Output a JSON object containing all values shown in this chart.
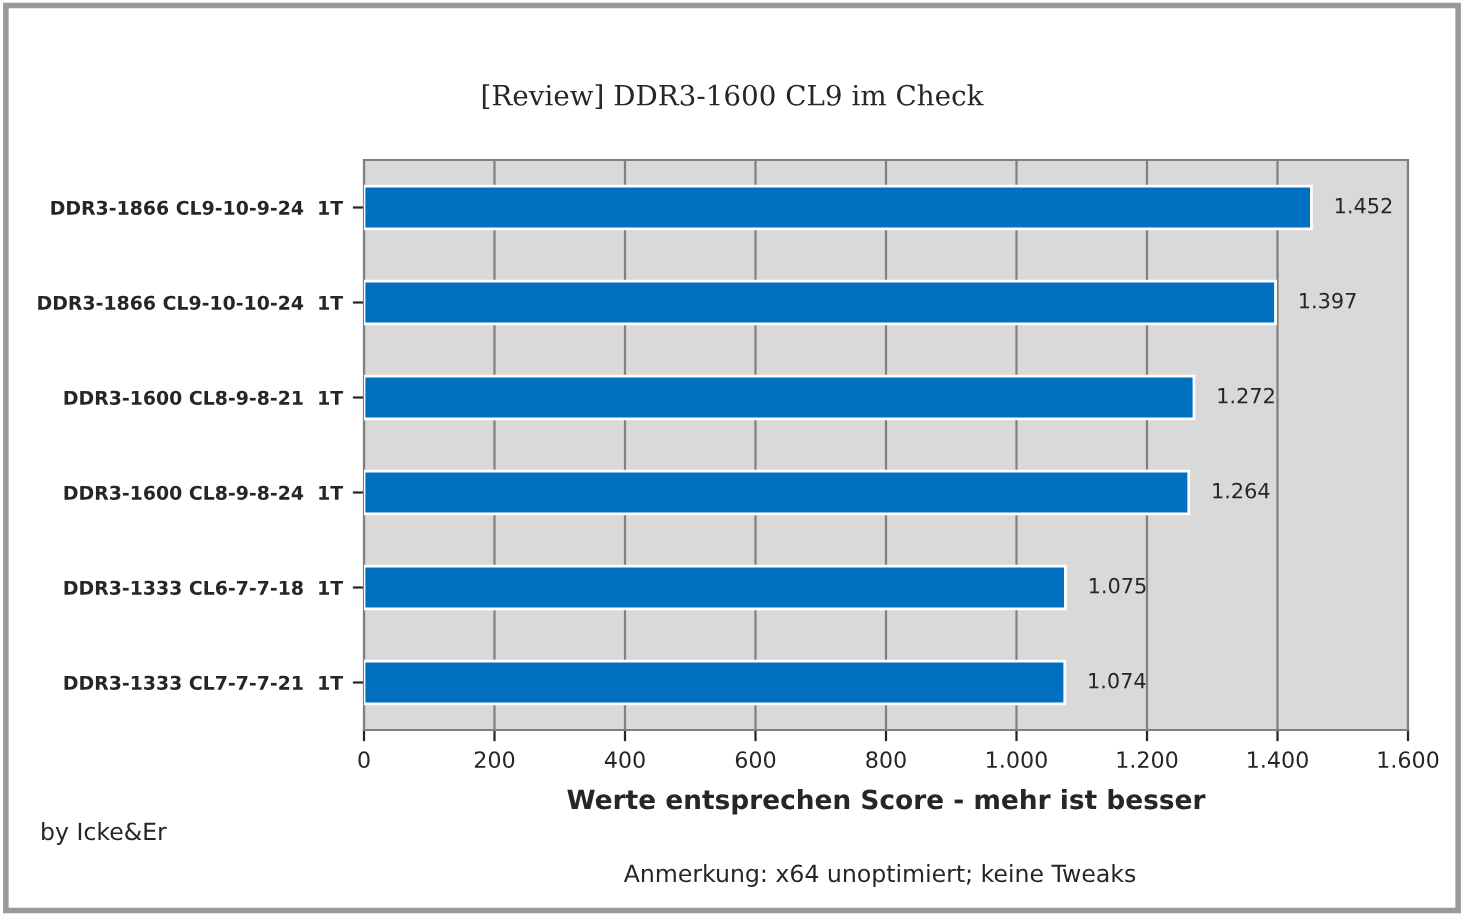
{
  "chart_data": {
    "type": "bar",
    "orientation": "horizontal",
    "subtitle": "[Review] DDR3-1600 CL9 im Check",
    "xlabel": "Werte entsprechen Score - mehr ist besser",
    "annotations": [
      "by Icke&Er",
      "Anmerkung: x64 unoptimiert; keine Tweaks"
    ],
    "categories": [
      "DDR3-1866 CL9-10-9-24  1T",
      "DDR3-1866 CL9-10-10-24  1T",
      "DDR3-1600 CL8-9-8-21  1T",
      "DDR3-1600 CL8-9-8-24  1T",
      "DDR3-1333 CL6-7-7-18  1T",
      "DDR3-1333 CL7-7-7-21  1T"
    ],
    "values": [
      1452,
      1397,
      1272,
      1264,
      1075,
      1074
    ],
    "value_labels": [
      "1.452",
      "1.397",
      "1.272",
      "1.264",
      "1.075",
      "1.074"
    ],
    "color": "#0070c0",
    "xlim": [
      0,
      1600
    ],
    "xticks": [
      0,
      200,
      400,
      600,
      800,
      {
        "value": 1000,
        "label": "1.000"
      },
      {
        "value": 1200,
        "label": "1.200"
      },
      {
        "value": 1400,
        "label": "1.400"
      },
      {
        "value": 1600,
        "label": "1.600"
      }
    ],
    "grid": "x"
  }
}
